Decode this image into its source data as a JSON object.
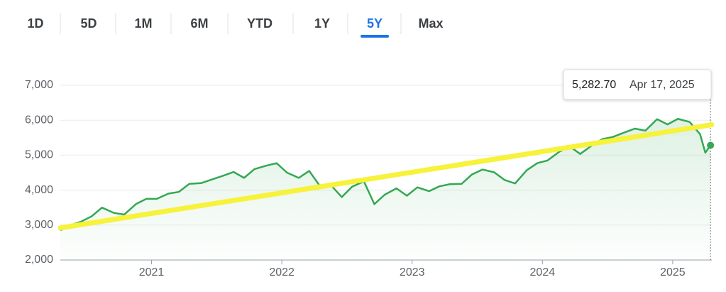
{
  "tabs": [
    "1D",
    "5D",
    "1M",
    "6M",
    "YTD",
    "1Y",
    "5Y",
    "Max"
  ],
  "selected_tab": 6,
  "chart_data": {
    "type": "line",
    "x": [
      2020.3,
      2020.38,
      2020.46,
      2020.54,
      2020.62,
      2020.71,
      2020.79,
      2020.88,
      2020.96,
      2021.04,
      2021.13,
      2021.21,
      2021.29,
      2021.38,
      2021.46,
      2021.54,
      2021.63,
      2021.71,
      2021.79,
      2021.88,
      2021.96,
      2022.04,
      2022.13,
      2022.21,
      2022.29,
      2022.38,
      2022.46,
      2022.54,
      2022.63,
      2022.71,
      2022.79,
      2022.88,
      2022.96,
      2023.04,
      2023.13,
      2023.21,
      2023.29,
      2023.38,
      2023.46,
      2023.54,
      2023.63,
      2023.71,
      2023.79,
      2023.88,
      2023.96,
      2024.04,
      2024.13,
      2024.21,
      2024.29,
      2024.38,
      2024.46,
      2024.54,
      2024.63,
      2024.71,
      2024.79,
      2024.88,
      2024.96,
      2025.04,
      2025.13,
      2025.21,
      2025.25,
      2025.29
    ],
    "series": [
      {
        "color": "#34a853",
        "values": [
          2850,
          3000,
          3100,
          3250,
          3500,
          3350,
          3300,
          3600,
          3750,
          3750,
          3900,
          3950,
          4180,
          4200,
          4300,
          4400,
          4520,
          4350,
          4600,
          4700,
          4770,
          4500,
          4350,
          4550,
          4130,
          4130,
          3800,
          4100,
          4250,
          3600,
          3870,
          4050,
          3840,
          4080,
          3970,
          4110,
          4170,
          4180,
          4450,
          4590,
          4510,
          4290,
          4190,
          4570,
          4770,
          4850,
          5100,
          5250,
          5035,
          5280,
          5460,
          5520,
          5650,
          5760,
          5700,
          6030,
          5880,
          6040,
          5950,
          5600,
          5070,
          5282.7
        ]
      }
    ],
    "trendline": {
      "x": [
        2020.3,
        2025.3
      ],
      "values": [
        2920,
        5870
      ],
      "color": "#f7f23a"
    },
    "tooltip": {
      "label": "5,282.70",
      "date": "Apr 17, 2025"
    },
    "xlim": [
      2020.3,
      2025.3
    ],
    "xticks": [
      2021,
      2022,
      2023,
      2024,
      2025
    ],
    "ylim": [
      2000,
      7000
    ],
    "yticks": [
      {
        "value": 2000,
        "label": "2,000"
      },
      {
        "value": 3000,
        "label": "3,000"
      },
      {
        "value": 4000,
        "label": "4,000"
      },
      {
        "value": 5000,
        "label": "5,000"
      },
      {
        "value": 6000,
        "label": "6,000"
      },
      {
        "value": 7000,
        "label": "7,000"
      }
    ],
    "grid": true
  }
}
